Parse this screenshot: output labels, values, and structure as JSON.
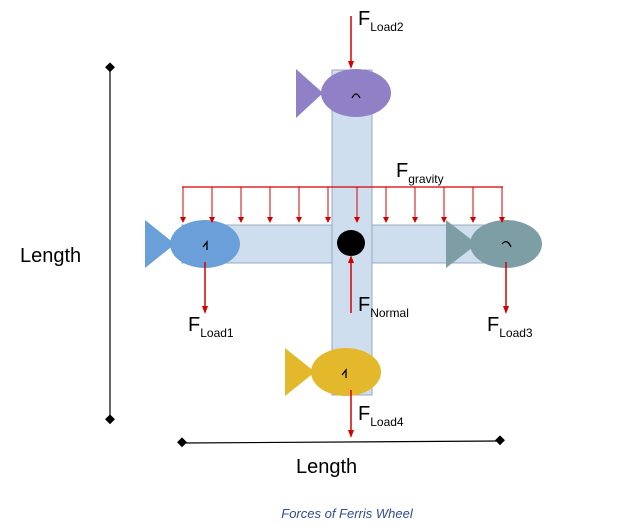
{
  "colors": {
    "arm": "#cfdeef",
    "arm_stroke": "#9aa9b8",
    "arrow": "#d40000",
    "hub": "#000000",
    "caption": "#2f4f8a",
    "fish_top": "#9080c6",
    "fish_left": "#6b9fd9",
    "fish_right": "#7e9ea6",
    "fish_bottom": "#e3b82a"
  },
  "labels": {
    "load2": {
      "main": "F",
      "sub": "Load2"
    },
    "gravity": {
      "main": "F",
      "sub": "gravity"
    },
    "load1": {
      "main": "F",
      "sub": "Load1"
    },
    "normal": {
      "main": "F",
      "sub": "Normal"
    },
    "load3": {
      "main": "F",
      "sub": "Load3"
    },
    "load4": {
      "main": "F",
      "sub": "Load4"
    },
    "length_vertical": "Length",
    "length_horizontal": "Length"
  },
  "caption": "Forces of Ferris Wheel",
  "gravity_arrow_count": 12
}
